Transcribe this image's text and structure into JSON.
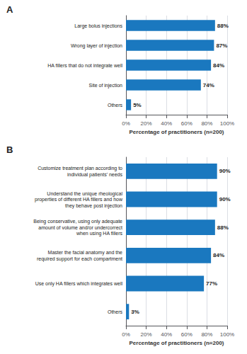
{
  "chart_data": [
    {
      "type": "bar",
      "title": "A",
      "orientation": "horizontal",
      "categories": [
        "Large bolus injections",
        "Wrong layer of injection",
        "HA fillers that do not integrate well",
        "Site of injection",
        "Others"
      ],
      "values": [
        88,
        87,
        84,
        74,
        5
      ],
      "value_labels": [
        "88%",
        "87%",
        "84%",
        "74%",
        "5%"
      ],
      "data_labels": true,
      "color": "#1a78bf",
      "xlabel": "Percentage of practitioners (n=200)",
      "xlim": [
        0,
        100
      ],
      "xticks": [
        {
          "value": 0,
          "label": "0%"
        },
        {
          "value": 20,
          "label": "20%"
        },
        {
          "value": 40,
          "label": "40%"
        },
        {
          "value": 60,
          "label": "60%"
        },
        {
          "value": 80,
          "label": "80%"
        },
        {
          "value": 100,
          "label": "100%"
        }
      ],
      "grid": true
    },
    {
      "type": "bar",
      "title": "B",
      "orientation": "horizontal",
      "categories": [
        "Customize treatment plan according to\nindividual patients' needs",
        "Understand the unique rheological\nproperties of different HA fillers and how\nthey behave post injection",
        "Being conservative, using only adequate\namount of volume and/or undercorrect\nwhen using HA fillers",
        "Master the facial anatomy and the\nrequired support for each compartment",
        "Use only HA fillers which integrates well",
        "Others"
      ],
      "values": [
        90,
        90,
        88,
        84,
        77,
        3
      ],
      "value_labels": [
        "90%",
        "90%",
        "88%",
        "84%",
        "77%",
        "3%"
      ],
      "data_labels": true,
      "color": "#1a78bf",
      "xlabel": "Percentage of practitioners (n=200)",
      "xlim": [
        0,
        100
      ],
      "xticks": [
        {
          "value": 0,
          "label": "0%"
        },
        {
          "value": 20,
          "label": "20%"
        },
        {
          "value": 40,
          "label": "40%"
        },
        {
          "value": 60,
          "label": "60%"
        },
        {
          "value": 80,
          "label": "80%"
        },
        {
          "value": 100,
          "label": "100%"
        }
      ],
      "grid": true
    }
  ]
}
